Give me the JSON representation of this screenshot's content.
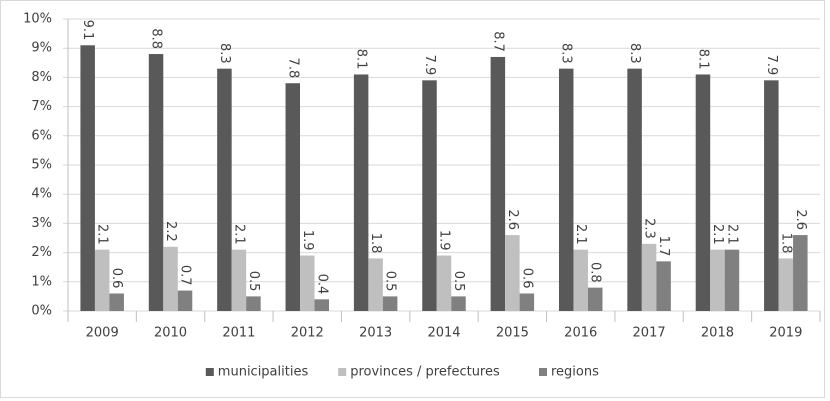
{
  "chart_data": {
    "type": "bar",
    "categories": [
      "2009",
      "2010",
      "2011",
      "2012",
      "2013",
      "2014",
      "2015",
      "2016",
      "2017",
      "2018",
      "2019"
    ],
    "series": [
      {
        "name": "municipalities",
        "color": "#595959",
        "values": [
          9.1,
          8.8,
          8.3,
          7.8,
          8.1,
          7.9,
          8.7,
          8.3,
          8.3,
          8.1,
          7.9
        ]
      },
      {
        "name": "provinces / prefectures",
        "color": "#bfbfbf",
        "values": [
          2.1,
          2.2,
          2.1,
          1.9,
          1.8,
          1.9,
          2.6,
          2.1,
          2.3,
          2.1,
          1.8
        ]
      },
      {
        "name": "regions",
        "color": "#808080",
        "values": [
          0.6,
          0.7,
          0.5,
          0.4,
          0.5,
          0.5,
          0.6,
          0.8,
          1.7,
          2.1,
          2.6
        ]
      }
    ],
    "ylim": [
      0,
      10
    ],
    "yticks": [
      {
        "value": 0,
        "label": "0%"
      },
      {
        "value": 1,
        "label": "1%"
      },
      {
        "value": 2,
        "label": "2%"
      },
      {
        "value": 3,
        "label": "3%"
      },
      {
        "value": 4,
        "label": "4%"
      },
      {
        "value": 5,
        "label": "5%"
      },
      {
        "value": 6,
        "label": "6%"
      },
      {
        "value": 7,
        "label": "7%"
      },
      {
        "value": 8,
        "label": "8%"
      },
      {
        "value": 9,
        "label": "9%"
      },
      {
        "value": 10,
        "label": "10%"
      }
    ],
    "grid": true,
    "legend": "bottom"
  }
}
